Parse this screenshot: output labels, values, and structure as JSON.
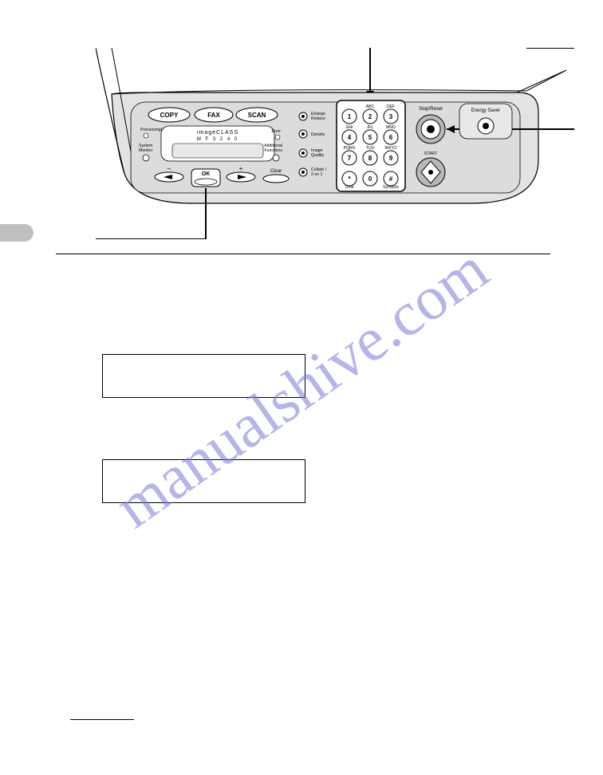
{
  "watermark_text": "manualshive.com",
  "lcd": {
    "box1_line1": "   ",
    "box1_line2": " ",
    "box2_line1": "  ",
    "box2_line2": " "
  },
  "panel": {
    "mode_buttons": [
      "COPY",
      "FAX",
      "SCAN"
    ],
    "brand_line1": "imageCLASS",
    "brand_line2": "M F 3 2 4 0",
    "left_labels": {
      "proc": "Processing/",
      "sysmon1": "System",
      "sysmon2": "Monitor",
      "error": "Error",
      "addl1": "Additional",
      "addl2": "Functions"
    },
    "nav": {
      "minus": "–",
      "plus": "+",
      "ok": "OK",
      "clear": "Clear"
    },
    "menu_items": [
      {
        "label1": "Enlarge",
        "label2": "Reduce"
      },
      {
        "label1": "Density",
        "label2": ""
      },
      {
        "label1": "Image",
        "label2": "Quality"
      },
      {
        "label1": "Collate /",
        "label2": "2 on 1"
      }
    ],
    "keypad": {
      "cols": [
        "",
        "ABC",
        "DEF"
      ],
      "row2_cols": [
        "GHI",
        "JKL",
        "MNO"
      ],
      "row3_cols": [
        "PQRS",
        "TUV",
        "WXYZ"
      ],
      "keys": [
        [
          "1",
          "2",
          "3"
        ],
        [
          "4",
          "5",
          "6"
        ],
        [
          "7",
          "8",
          "9"
        ],
        [
          "*",
          "0",
          "#"
        ]
      ],
      "bottom_labels": {
        "star": "Tone",
        "zero": "",
        "hash": "Symbols"
      }
    },
    "stop_reset": "Stop/Reset",
    "energy_saver": "Energy Saver",
    "start": "START"
  },
  "style": {
    "panel_fill": "#e3e3e3",
    "panel_inner": "#dcdcdc",
    "line": "#000000",
    "bg": "#ffffff",
    "watermark_color": "rgba(120,120,220,0.55)",
    "lcd_font": "Courier New"
  }
}
